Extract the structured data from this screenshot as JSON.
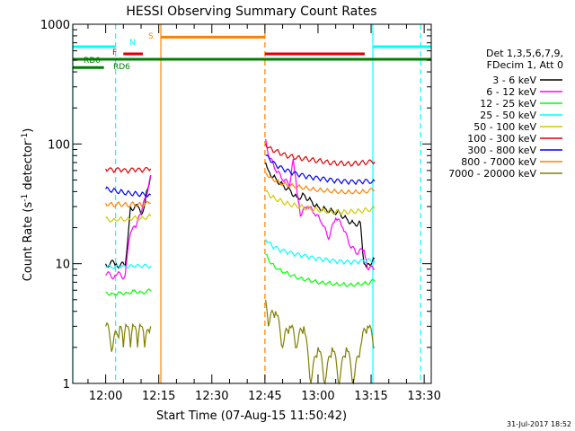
{
  "chart_data": {
    "type": "line",
    "title": "HESSI Observing Summary Count Rates",
    "xlabel": "Start Time (07-Aug-15 11:50:42)",
    "ylabel": "Count Rate (s",
    "ylabel_sup1": "-1",
    "ylabel_mid": " detector",
    "ylabel_sup2": "-1",
    "ylabel_end": ")",
    "yscale": "log",
    "ylim": [
      1,
      1000
    ],
    "y_ticks": [
      {
        "value": 1,
        "label": "1"
      },
      {
        "value": 10,
        "label": "10"
      },
      {
        "value": 100,
        "label": "100"
      },
      {
        "value": 1000,
        "label": "1000"
      }
    ],
    "xlim_minutes": [
      710.7,
      812.0
    ],
    "x_ticks": [
      {
        "minute": 720,
        "label": "12:00"
      },
      {
        "minute": 735,
        "label": "12:15"
      },
      {
        "minute": 750,
        "label": "12:30"
      },
      {
        "minute": 765,
        "label": "12:45"
      },
      {
        "minute": 780,
        "label": "13:00"
      },
      {
        "minute": 795,
        "label": "13:15"
      },
      {
        "minute": 810,
        "label": "13:30"
      }
    ],
    "legend_header": [
      "Det 1,3,5,6,7,9,",
      "FDecim 1, Att 0"
    ],
    "legend_position": "right",
    "series": [
      {
        "name": "3 - 6 keV",
        "color": "#000000",
        "segments": [
          {
            "x": [
              720.0,
              723.0,
              725.5,
              727.0,
              729.5,
              730.5,
              731.5,
              732.7
            ],
            "y": [
              10.0,
              10.0,
              9.5,
              30.0,
              29.0,
              27.0,
              40.0,
              55.0
            ]
          },
          {
            "x": [
              765.2,
              766.0,
              768.0,
              770.0,
              772.0,
              774.0,
              776.0,
              778.0,
              780.0,
              782.0,
              784.0,
              786.0,
              788.0,
              790.0,
              792.0,
              793.0,
              794.0,
              796.0
            ],
            "y": [
              70.0,
              60.0,
              52.0,
              46.0,
              42.0,
              36.0,
              38.0,
              34.0,
              30.0,
              29.0,
              28.0,
              27.0,
              24.0,
              22.0,
              22.0,
              10.0,
              10.0,
              11.0
            ]
          }
        ]
      },
      {
        "name": "6 - 12 keV",
        "color": "#ff00ff",
        "segments": [
          {
            "x": [
              720.0,
              723.0,
              725.5,
              727.0,
              728.5,
              730.0,
              732.0,
              732.7
            ],
            "y": [
              8.0,
              8.0,
              8.0,
              18.0,
              20.0,
              26.0,
              42.0,
              55.0
            ]
          },
          {
            "x": [
              765.2,
              766.0,
              768.0,
              770.0,
              772.0,
              773.0,
              774.0,
              775.0,
              777.0,
              779.0,
              781.0,
              783.0,
              785.0,
              787.0,
              789.0,
              791.0,
              793.0,
              794.0,
              796.0
            ],
            "y": [
              110.0,
              80.0,
              60.0,
              50.0,
              45.0,
              75.0,
              42.0,
              25.0,
              30.0,
              26.0,
              22.0,
              16.0,
              24.0,
              20.0,
              14.0,
              12.0,
              13.0,
              9.0,
              9.0
            ]
          }
        ]
      },
      {
        "name": "12 - 25 keV",
        "color": "#00ff00",
        "segments": [
          {
            "x": [
              720.0,
              722.0,
              724.0,
              726.0,
              728.0,
              730.0,
              732.7
            ],
            "y": [
              5.8,
              5.6,
              5.8,
              5.7,
              6.0,
              5.8,
              5.9
            ]
          },
          {
            "x": [
              765.2,
              767.0,
              769.0,
              771.0,
              773.0,
              775.0,
              777.0,
              779.0,
              781.0,
              783.0,
              785.0,
              787.0,
              789.0,
              791.0,
              793.0,
              796.0
            ],
            "y": [
              12.0,
              10.0,
              9.0,
              8.5,
              8.0,
              7.6,
              7.4,
              7.2,
              7.0,
              7.0,
              6.8,
              6.8,
              6.7,
              6.8,
              6.9,
              7.1
            ]
          }
        ]
      },
      {
        "name": "25 - 50 keV",
        "color": "#00ffff",
        "segments": [
          {
            "x": [
              720.0,
              722.0,
              724.0,
              726.0,
              728.0,
              730.0,
              732.7
            ],
            "y": [
              9.5,
              9.2,
              9.4,
              9.3,
              9.5,
              9.4,
              9.6
            ]
          },
          {
            "x": [
              765.2,
              767.0,
              769.0,
              771.0,
              773.0,
              775.0,
              777.0,
              779.0,
              781.0,
              783.0,
              785.0,
              787.0,
              789.0,
              791.0,
              793.0,
              796.0
            ],
            "y": [
              16.0,
              14.0,
              13.0,
              12.5,
              12.0,
              11.7,
              11.4,
              11.0,
              10.8,
              10.6,
              10.4,
              10.3,
              10.2,
              10.3,
              10.5,
              10.6
            ]
          }
        ]
      },
      {
        "name": "50 - 100 keV",
        "color": "#cccc00",
        "segments": [
          {
            "x": [
              720.0,
              722.0,
              724.0,
              726.0,
              728.0,
              730.0,
              732.7
            ],
            "y": [
              24.0,
              23.0,
              24.0,
              23.5,
              24.5,
              24.0,
              25.0
            ]
          },
          {
            "x": [
              765.2,
              767.0,
              769.0,
              771.0,
              773.0,
              775.0,
              777.0,
              779.0,
              781.0,
              783.0,
              785.0,
              787.0,
              789.0,
              791.0,
              793.0,
              796.0
            ],
            "y": [
              40.0,
              36.0,
              34.0,
              32.0,
              31.0,
              30.0,
              29.0,
              28.5,
              28.0,
              27.5,
              27.0,
              27.0,
              27.2,
              27.5,
              28.0,
              29.0
            ]
          }
        ]
      },
      {
        "name": "100 - 300 keV",
        "color": "#e00000",
        "segments": [
          {
            "x": [
              720.0,
              722.0,
              724.0,
              726.0,
              728.0,
              730.0,
              732.7
            ],
            "y": [
              62.0,
              60.0,
              61.0,
              59.0,
              61.0,
              60.0,
              62.0
            ]
          },
          {
            "x": [
              765.2,
              767.0,
              769.0,
              771.0,
              773.0,
              775.0,
              777.0,
              779.0,
              781.0,
              783.0,
              785.0,
              787.0,
              789.0,
              791.0,
              793.0,
              796.0
            ],
            "y": [
              100.0,
              90.0,
              85.0,
              80.0,
              78.0,
              76.0,
              75.0,
              73.0,
              72.0,
              70.0,
              69.0,
              69.0,
              68.0,
              69.0,
              70.0,
              71.0
            ]
          }
        ]
      },
      {
        "name": "300 - 800 keV",
        "color": "#0000ff",
        "segments": [
          {
            "x": [
              720.0,
              722.0,
              724.0,
              726.0,
              728.0,
              730.0,
              732.7
            ],
            "y": [
              42.0,
              41.0,
              40.0,
              39.0,
              38.5,
              38.0,
              37.5
            ]
          },
          {
            "x": [
              765.2,
              767.0,
              769.0,
              771.0,
              773.0,
              775.0,
              777.0,
              779.0,
              781.0,
              783.0,
              785.0,
              787.0,
              789.0,
              791.0,
              793.0,
              796.0
            ],
            "y": [
              80.0,
              70.0,
              64.0,
              60.0,
              57.0,
              55.0,
              53.0,
              52.0,
              51.0,
              50.0,
              49.0,
              48.5,
              48.0,
              48.0,
              48.5,
              49.0
            ]
          }
        ]
      },
      {
        "name": "800 - 7000 keV",
        "color": "#ff8000",
        "segments": [
          {
            "x": [
              720.0,
              722.0,
              724.0,
              726.0,
              728.0,
              730.0,
              732.7
            ],
            "y": [
              32.0,
              31.0,
              31.5,
              31.0,
              31.5,
              31.0,
              32.0
            ]
          },
          {
            "x": [
              765.2,
              767.0,
              769.0,
              771.0,
              773.0,
              775.0,
              777.0,
              779.0,
              781.0,
              783.0,
              785.0,
              787.0,
              789.0,
              791.0,
              793.0,
              796.0
            ],
            "y": [
              58.0,
              52.0,
              48.0,
              46.0,
              45.0,
              44.0,
              43.0,
              42.0,
              41.5,
              41.0,
              40.5,
              40.0,
              40.0,
              40.0,
              40.5,
              41.0
            ]
          }
        ]
      },
      {
        "name": "7000 - 20000 keV",
        "color": "#808000",
        "segments": [
          {
            "x": [
              720.0,
              722.0,
              724.0,
              725.0,
              726.0,
              727.0,
              728.0,
              729.0,
              730.0,
              731.0,
              732.7
            ],
            "y": [
              3.0,
              2.0,
              3.0,
              2.0,
              3.0,
              2.0,
              3.0,
              2.0,
              3.0,
              2.0,
              3.0
            ]
          },
          {
            "x": [
              765.2,
              766.0,
              768.0,
              770.0,
              772.0,
              774.0,
              776.0,
              778.0,
              780.0,
              782.0,
              784.0,
              786.0,
              788.0,
              790.0,
              792.0,
              794.0,
              796.0
            ],
            "y": [
              5.0,
              3.0,
              4.0,
              2.0,
              3.0,
              2.0,
              3.0,
              1.0,
              2.0,
              1.0,
              2.0,
              1.0,
              2.0,
              1.0,
              2.0,
              3.0,
              2.0
            ]
          }
        ]
      }
    ],
    "flags": [
      {
        "name": "N",
        "label": "N",
        "color": "#00ffff",
        "y": 650,
        "segments": [
          [
            710.7,
            722.8
          ],
          [
            795.5,
            812.0
          ]
        ]
      },
      {
        "name": "F",
        "label": "F",
        "color": "#e00000",
        "y": 565,
        "segments": [
          [
            725.0,
            730.5
          ],
          [
            765.0,
            793.2
          ]
        ]
      },
      {
        "name": "S",
        "label": "S",
        "color": "#ff8000",
        "y": 780,
        "segments": [
          [
            735.6,
            765.0
          ]
        ]
      },
      {
        "name": "RD0",
        "label": "RD0",
        "color": "#008000",
        "y": 510,
        "segments": [
          [
            710.7,
            812.0
          ]
        ]
      },
      {
        "name": "RD6",
        "label": "RD6",
        "color": "#008000",
        "y": 435,
        "segments": [
          [
            710.7,
            719.5
          ]
        ]
      }
    ],
    "vlines": [
      {
        "minute": 710.7,
        "color": "#00ffff",
        "style": "solid"
      },
      {
        "minute": 722.8,
        "color": "#00ffff",
        "style": "dashed"
      },
      {
        "minute": 735.6,
        "color": "#ff8000",
        "style": "solid"
      },
      {
        "minute": 765.0,
        "color": "#ff8000",
        "style": "dashed"
      },
      {
        "minute": 795.5,
        "color": "#00ffff",
        "style": "solid"
      },
      {
        "minute": 809.0,
        "color": "#00ffff",
        "style": "dashed"
      }
    ]
  },
  "footer": {
    "timestamp": "31-Jul-2017 18:52"
  }
}
